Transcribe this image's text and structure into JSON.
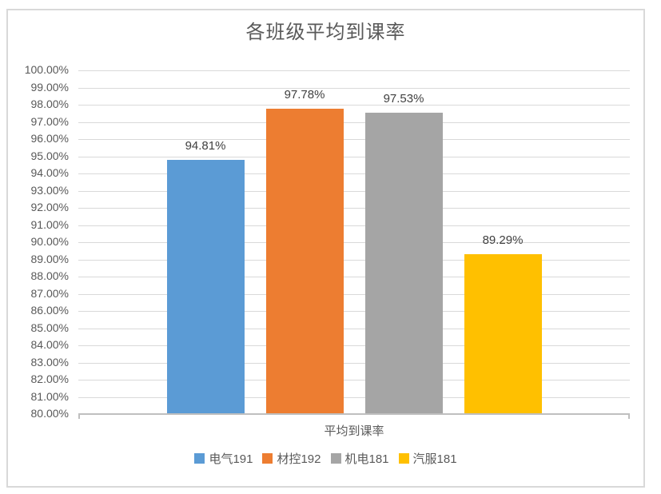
{
  "chart_data": {
    "type": "bar",
    "title": "各班级平均到课率",
    "categories": [
      "平均到课率"
    ],
    "series": [
      {
        "name": "电气191",
        "values": [
          94.81
        ],
        "data_label": "94.81%",
        "color": "#5B9BD5"
      },
      {
        "name": "材控192",
        "values": [
          97.78
        ],
        "data_label": "97.78%",
        "color": "#ED7D31"
      },
      {
        "name": "机电181",
        "values": [
          97.53
        ],
        "data_label": "97.53%",
        "color": "#A5A5A5"
      },
      {
        "name": "汽服181",
        "values": [
          89.29
        ],
        "data_label": "89.29%",
        "color": "#FFC000"
      }
    ],
    "ylim": [
      80,
      100
    ],
    "ytick_step": 1,
    "ytick_labels_top_to_bottom": [
      "100.00%",
      "99.00%",
      "98.00%",
      "97.00%",
      "96.00%",
      "95.00%",
      "94.00%",
      "93.00%",
      "92.00%",
      "91.00%",
      "90.00%",
      "89.00%",
      "88.00%",
      "87.00%",
      "86.00%",
      "85.00%",
      "84.00%",
      "83.00%",
      "82.00%",
      "81.00%",
      "80.00%"
    ],
    "grid": true,
    "legend_position": "bottom",
    "legend": [
      "电气191",
      "材控192",
      "机电181",
      "汽服181"
    ]
  },
  "colors": {
    "background": "#FFFFFF",
    "chart_border": "#D9D9D9",
    "gridline": "#D9D9D9",
    "axis_line": "#BFBFBF",
    "title_text": "#595959",
    "axis_text": "#595959",
    "data_label_text": "#404040"
  }
}
